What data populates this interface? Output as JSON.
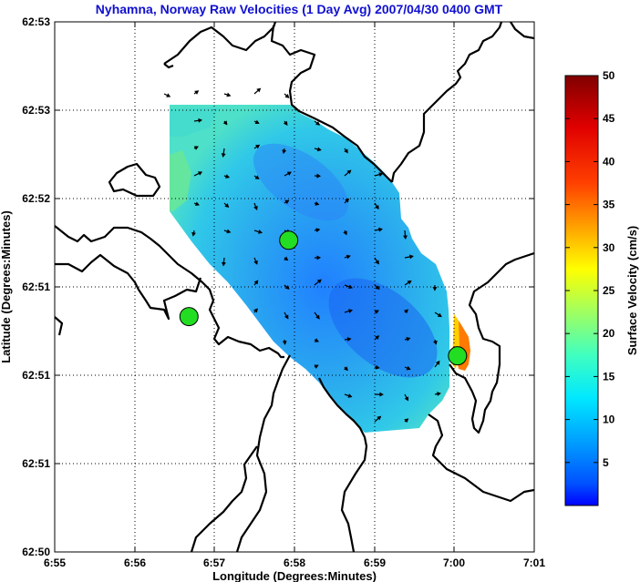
{
  "chart_data": {
    "type": "heatmap",
    "title": "Nyhamna, Norway Raw Velocities (1 Day Avg) 2007/04/30 0400 GMT",
    "xlabel": "Longitude (Degrees:Minutes)",
    "ylabel": "Latitude (Degrees:Minutes)",
    "x_ticks": [
      "6:55",
      "6:56",
      "6:57",
      "6:58",
      "6:59",
      "7:00",
      "7:01"
    ],
    "y_ticks": [
      "62:50",
      "62:51",
      "62:51",
      "62:51",
      "62:52",
      "62:53",
      "62:53"
    ],
    "xlim": [
      6.9167,
      7.0167
    ],
    "grid": true,
    "colorbar": {
      "label": "Surface Velocity (cm/s)",
      "min": 0,
      "max": 50,
      "ticks": [
        "5",
        "10",
        "15",
        "20",
        "25",
        "30",
        "35",
        "40",
        "45",
        "50"
      ],
      "colormap": "jet"
    },
    "radar_sites": [
      {
        "lon_frac": 0.28,
        "lat_frac": 0.556
      },
      {
        "lon_frac": 0.488,
        "lat_frac": 0.412
      },
      {
        "lon_frac": 0.84,
        "lat_frac": 0.63
      }
    ],
    "colors": {
      "title": "#1010d0",
      "site_marker": "#22dd22",
      "coastline": "#000000",
      "background": "#ffffff"
    }
  }
}
